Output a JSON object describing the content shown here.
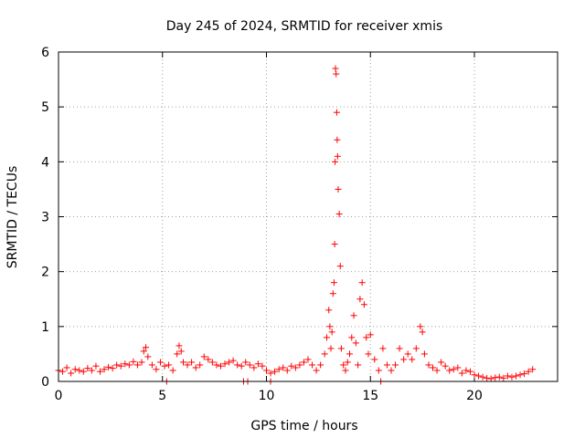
{
  "chart_data": {
    "type": "scatter",
    "title": "Day 245 of 2024, SRMTID for receiver xmis",
    "xlabel": "GPS time / hours",
    "ylabel": "SRMTID / TECUs",
    "xlim": [
      0,
      24
    ],
    "ylim": [
      0,
      6
    ],
    "x_ticks": [
      "0",
      "5",
      "10",
      "15",
      "20"
    ],
    "y_ticks": [
      "0",
      "1",
      "2",
      "3",
      "4",
      "5",
      "6"
    ],
    "grid": true,
    "marker": "plus",
    "color": "#ff0000",
    "series": [
      {
        "name": "SRMTID",
        "x": [
          0.0,
          0.2,
          0.4,
          0.6,
          0.8,
          1.0,
          1.2,
          1.4,
          1.6,
          1.8,
          2.0,
          2.2,
          2.4,
          2.6,
          2.8,
          3.0,
          3.2,
          3.4,
          3.6,
          3.8,
          4.0,
          4.1,
          4.2,
          4.3,
          4.5,
          4.7,
          4.9,
          5.1,
          5.3,
          5.5,
          5.7,
          5.8,
          5.9,
          6.0,
          6.2,
          6.4,
          6.6,
          6.8,
          7.0,
          7.2,
          7.4,
          7.6,
          7.8,
          8.0,
          8.2,
          8.4,
          8.6,
          8.8,
          9.0,
          9.2,
          9.4,
          9.6,
          9.8,
          10.0,
          10.2,
          10.4,
          10.6,
          10.8,
          11.0,
          11.2,
          11.4,
          11.6,
          11.8,
          12.0,
          12.2,
          12.4,
          12.6,
          12.8,
          12.9,
          13.0,
          13.05,
          13.1,
          13.15,
          13.2,
          13.25,
          13.28,
          13.3,
          13.32,
          13.35,
          13.38,
          13.4,
          13.42,
          13.45,
          13.5,
          13.55,
          13.6,
          13.7,
          13.8,
          13.9,
          14.0,
          14.1,
          14.2,
          14.3,
          14.4,
          14.5,
          14.6,
          14.7,
          14.8,
          14.9,
          15.0,
          15.2,
          15.4,
          15.6,
          15.8,
          16.0,
          16.2,
          16.4,
          16.6,
          16.8,
          17.0,
          17.2,
          17.4,
          17.5,
          17.6,
          17.8,
          18.0,
          18.2,
          18.4,
          18.6,
          18.8,
          19.0,
          19.2,
          19.4,
          19.6,
          19.8,
          20.0,
          20.2,
          20.4,
          20.6,
          20.8,
          21.0,
          21.2,
          21.4,
          21.6,
          21.8,
          22.0,
          22.2,
          22.4,
          22.6,
          22.8,
          8.9,
          9.1,
          10.2,
          5.2,
          15.5
        ],
        "y": [
          0.2,
          0.18,
          0.25,
          0.15,
          0.22,
          0.2,
          0.18,
          0.24,
          0.2,
          0.28,
          0.18,
          0.22,
          0.26,
          0.24,
          0.3,
          0.28,
          0.32,
          0.3,
          0.36,
          0.3,
          0.35,
          0.55,
          0.62,
          0.45,
          0.3,
          0.22,
          0.35,
          0.28,
          0.3,
          0.2,
          0.5,
          0.65,
          0.55,
          0.35,
          0.3,
          0.35,
          0.25,
          0.3,
          0.45,
          0.4,
          0.35,
          0.3,
          0.28,
          0.32,
          0.35,
          0.38,
          0.3,
          0.28,
          0.35,
          0.3,
          0.25,
          0.32,
          0.28,
          0.2,
          0.15,
          0.18,
          0.22,
          0.25,
          0.2,
          0.28,
          0.25,
          0.3,
          0.35,
          0.4,
          0.3,
          0.2,
          0.3,
          0.5,
          0.8,
          1.3,
          1.0,
          0.6,
          0.9,
          1.6,
          1.8,
          2.5,
          4.0,
          5.7,
          5.6,
          4.9,
          4.4,
          4.1,
          3.5,
          3.05,
          2.1,
          0.6,
          0.3,
          0.2,
          0.35,
          0.5,
          0.8,
          1.2,
          0.7,
          0.3,
          1.5,
          1.8,
          1.4,
          0.8,
          0.5,
          0.85,
          0.4,
          0.2,
          0.6,
          0.3,
          0.2,
          0.3,
          0.6,
          0.4,
          0.5,
          0.4,
          0.6,
          1.0,
          0.9,
          0.5,
          0.3,
          0.25,
          0.2,
          0.35,
          0.28,
          0.2,
          0.22,
          0.25,
          0.15,
          0.2,
          0.18,
          0.12,
          0.1,
          0.08,
          0.06,
          0.05,
          0.07,
          0.08,
          0.06,
          0.1,
          0.08,
          0.1,
          0.12,
          0.14,
          0.18,
          0.22,
          0.0,
          0.0,
          0.0,
          0.0,
          0.0
        ]
      }
    ]
  }
}
